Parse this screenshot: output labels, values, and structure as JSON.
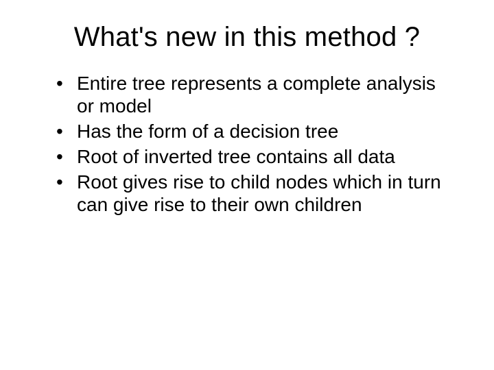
{
  "slide": {
    "title": "What's new in this method ?",
    "bullets": [
      "Entire tree represents a complete analysis or model",
      "Has the form of a decision tree",
      "Root of inverted tree contains all data",
      "Root gives rise to child nodes which in turn can give rise to their own children"
    ],
    "title_fontsize": 40,
    "body_fontsize": 28,
    "background_color": "#ffffff",
    "text_color": "#000000"
  }
}
